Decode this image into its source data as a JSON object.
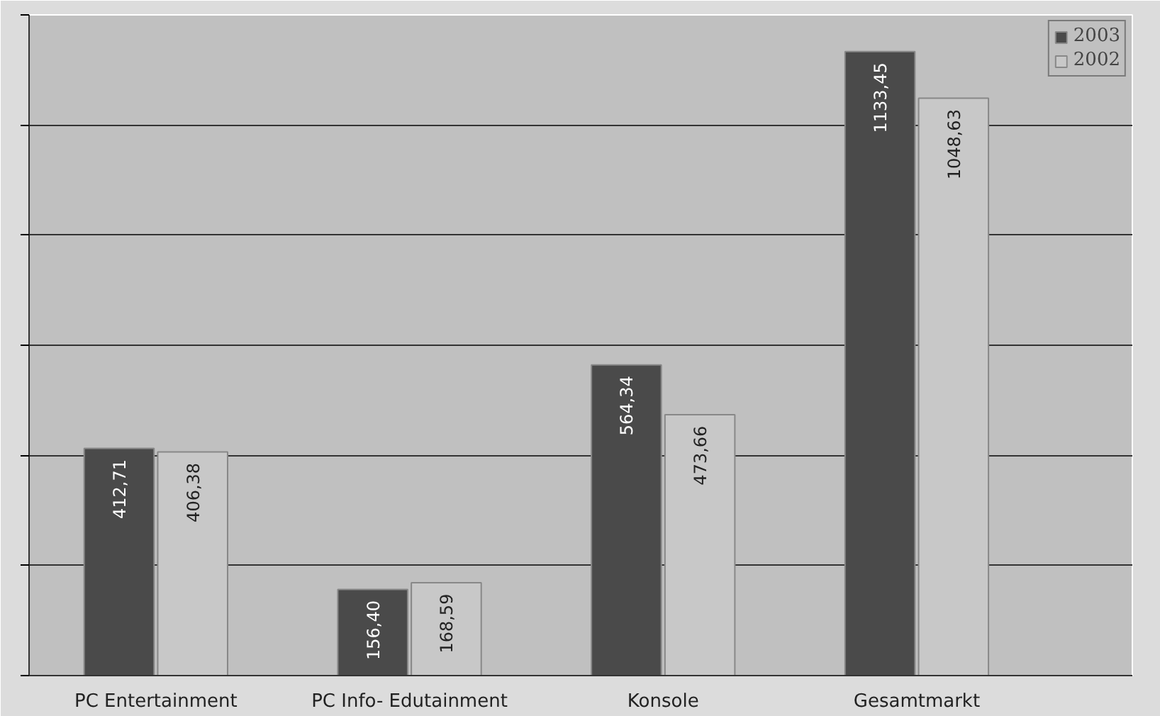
{
  "chart_data": {
    "type": "bar",
    "categories": [
      "PC Entertainment",
      "PC Info- Edutainment",
      "Konsole",
      "Gesamtmarkt"
    ],
    "series": [
      {
        "name": "2003",
        "color": "#4a4a4a",
        "values": [
          412.71,
          156.4,
          564.34,
          1133.45
        ],
        "value_labels": [
          "412,71",
          "156,40",
          "564,34",
          "1133,45"
        ]
      },
      {
        "name": "2002",
        "color": "#c8c8c8",
        "values": [
          406.38,
          168.59,
          473.66,
          1048.63
        ],
        "value_labels": [
          "406,38",
          "168,59",
          "473,66",
          "1048,63"
        ]
      }
    ],
    "ylim": [
      0,
      1200
    ],
    "yticks": [
      {
        "value": 0,
        "label": null
      },
      {
        "value": 200,
        "label": null
      },
      {
        "value": 400,
        "label": null
      },
      {
        "value": 600,
        "label": null
      },
      {
        "value": 800,
        "label": null
      },
      {
        "value": 1000,
        "label": null
      },
      {
        "value": 1200,
        "label": null
      }
    ],
    "tick_labels": "x",
    "grid": "y",
    "legend": "top right"
  }
}
